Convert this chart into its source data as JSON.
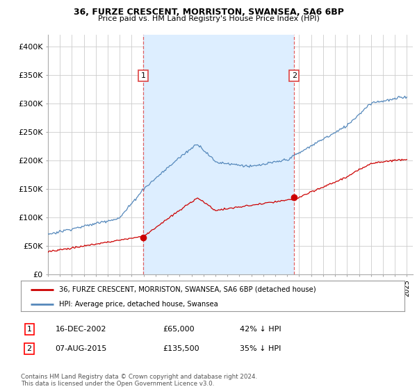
{
  "title_line1": "36, FURZE CRESCENT, MORRISTON, SWANSEA, SA6 6BP",
  "title_line2": "Price paid vs. HM Land Registry's House Price Index (HPI)",
  "ylim": [
    0,
    420000
  ],
  "yticks": [
    0,
    50000,
    100000,
    150000,
    200000,
    250000,
    300000,
    350000,
    400000
  ],
  "ytick_labels": [
    "£0",
    "£50K",
    "£100K",
    "£150K",
    "£200K",
    "£250K",
    "£300K",
    "£350K",
    "£400K"
  ],
  "hpi_color": "#5588bb",
  "price_color": "#cc0000",
  "vline_color": "#dd4444",
  "shade_color": "#ddeeff",
  "t1_year": 2002.96,
  "t2_year": 2015.58,
  "t1_price": 65000,
  "t2_price": 135500,
  "legend_label1": "36, FURZE CRESCENT, MORRISTON, SWANSEA, SA6 6BP (detached house)",
  "legend_label2": "HPI: Average price, detached house, Swansea",
  "table_row1": [
    "1",
    "16-DEC-2002",
    "£65,000",
    "42% ↓ HPI"
  ],
  "table_row2": [
    "2",
    "07-AUG-2015",
    "£135,500",
    "35% ↓ HPI"
  ],
  "footer": "Contains HM Land Registry data © Crown copyright and database right 2024.\nThis data is licensed under the Open Government Licence v3.0.",
  "background_color": "#ffffff",
  "grid_color": "#cccccc",
  "xlim_start": 1995,
  "xlim_end": 2025.5
}
